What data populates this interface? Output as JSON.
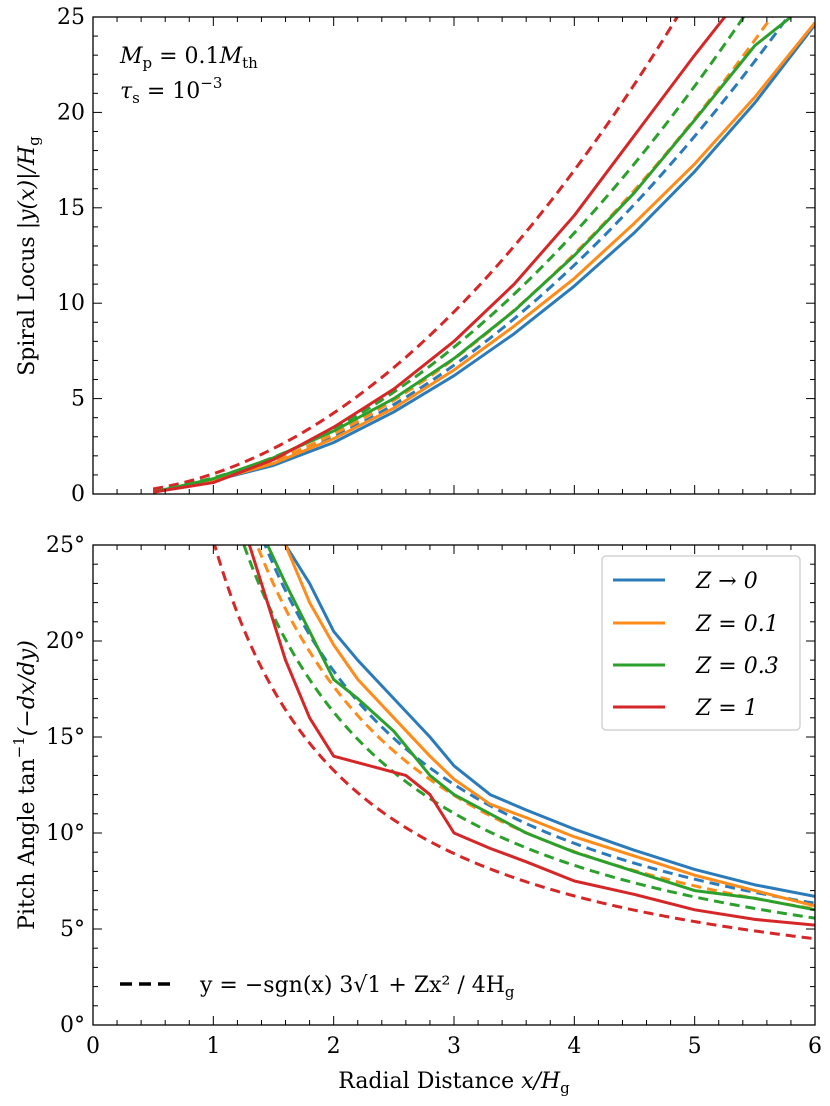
{
  "colors": {
    "blue": "#2b7bba",
    "orange": "#ff8c1a",
    "green": "#2ca02c",
    "red": "#d62728",
    "black": "#000000"
  },
  "chart_data": [
    {
      "type": "line",
      "panel": "top",
      "ylabel": "Spiral Locus |y(x)|/H_g",
      "xlim": [
        0,
        6
      ],
      "ylim": [
        0,
        25
      ],
      "x_ticks": [
        0,
        1,
        2,
        3,
        4,
        5,
        6
      ],
      "y_ticks": [
        0,
        5,
        10,
        15,
        20,
        25
      ],
      "y_tick_labels": [
        "0",
        "5",
        "10",
        "15",
        "20",
        "25"
      ],
      "annotations": [
        "M_p = 0.1 M_th",
        "τ_s = 10^-3"
      ],
      "dashed_model": {
        "formula": "y = -sgn(x) 3 sqrt(1+Z) x^2 / 4H_g",
        "x_start": 0.5
      },
      "series": [
        {
          "name": "Z → 0",
          "color_key": "blue",
          "x": [
            0.5,
            1.0,
            1.5,
            2.0,
            2.5,
            3.0,
            3.5,
            4.0,
            4.5,
            5.0,
            5.5,
            6.0
          ],
          "y": [
            0.1,
            0.7,
            1.5,
            2.7,
            4.3,
            6.2,
            8.4,
            10.9,
            13.7,
            16.9,
            20.5,
            24.6
          ]
        },
        {
          "name": "Z = 0.1",
          "color_key": "orange",
          "x": [
            0.5,
            1.0,
            1.5,
            2.0,
            2.5,
            3.0,
            3.5,
            4.0,
            4.5,
            5.0,
            5.5,
            6.0
          ],
          "y": [
            0.1,
            0.7,
            1.6,
            2.9,
            4.5,
            6.5,
            8.8,
            11.3,
            14.2,
            17.3,
            20.8,
            24.7
          ]
        },
        {
          "name": "Z = 0.3",
          "color_key": "green",
          "x": [
            0.5,
            1.0,
            1.5,
            2.0,
            2.5,
            3.0,
            3.5,
            4.0,
            4.5,
            5.0,
            5.5,
            5.8
          ],
          "y": [
            0.1,
            0.8,
            1.9,
            3.3,
            5.0,
            7.1,
            9.6,
            12.5,
            15.8,
            19.6,
            23.5,
            25.0
          ]
        },
        {
          "name": "Z = 1",
          "color_key": "red",
          "x": [
            0.5,
            1.0,
            1.5,
            2.0,
            2.5,
            3.0,
            3.5,
            4.0,
            4.5,
            5.0,
            5.25
          ],
          "y": [
            0.1,
            0.6,
            1.8,
            3.5,
            5.5,
            8.0,
            11.0,
            14.6,
            18.8,
            23.0,
            25.0
          ]
        }
      ]
    },
    {
      "type": "line",
      "panel": "bottom",
      "xlabel": "Radial Distance x/H_g",
      "ylabel": "Pitch Angle tan^-1(-dx/dy)",
      "xlim": [
        0,
        6
      ],
      "ylim": [
        0,
        25
      ],
      "x_ticks": [
        0,
        1,
        2,
        3,
        4,
        5,
        6
      ],
      "x_tick_labels": [
        "0",
        "1",
        "2",
        "3",
        "4",
        "5",
        "6"
      ],
      "y_ticks": [
        0,
        5,
        10,
        15,
        20,
        25
      ],
      "y_tick_labels": [
        "0°",
        "5°",
        "10°",
        "15°",
        "20°",
        "25°"
      ],
      "legend_position": "top-right",
      "series": [
        {
          "name": "Z → 0",
          "color_key": "blue",
          "x": [
            1.6,
            1.8,
            2.0,
            2.2,
            2.5,
            2.8,
            3.0,
            3.3,
            3.6,
            4.0,
            4.5,
            5.0,
            5.5,
            6.0
          ],
          "y": [
            25.0,
            23.0,
            20.5,
            19.0,
            17.0,
            15.0,
            13.5,
            12.0,
            11.2,
            10.2,
            9.1,
            8.1,
            7.3,
            6.7
          ]
        },
        {
          "name": "Z = 0.1",
          "color_key": "orange",
          "x": [
            1.6,
            1.8,
            2.0,
            2.2,
            2.5,
            2.8,
            3.0,
            3.3,
            3.6,
            4.0,
            4.5,
            5.0,
            5.5,
            6.0
          ],
          "y": [
            25.0,
            22.0,
            19.8,
            18.0,
            16.0,
            14.0,
            12.8,
            11.5,
            10.8,
            9.8,
            8.8,
            7.8,
            7.0,
            6.2
          ]
        },
        {
          "name": "Z = 0.3",
          "color_key": "green",
          "x": [
            1.45,
            1.6,
            1.8,
            2.0,
            2.2,
            2.5,
            2.8,
            3.0,
            3.3,
            3.6,
            4.0,
            4.5,
            5.0,
            5.5,
            6.0
          ],
          "y": [
            25.0,
            23.0,
            20.5,
            18.0,
            17.0,
            15.3,
            13.0,
            12.0,
            11.0,
            10.0,
            9.0,
            8.0,
            7.0,
            6.6,
            6.0
          ]
        },
        {
          "name": "Z = 1",
          "color_key": "red",
          "x": [
            1.3,
            1.45,
            1.6,
            1.8,
            2.0,
            2.3,
            2.6,
            2.8,
            3.0,
            3.3,
            3.6,
            4.0,
            4.5,
            5.0,
            5.5,
            6.0
          ],
          "y": [
            25.0,
            22.0,
            19.0,
            16.0,
            14.0,
            13.5,
            13.0,
            12.0,
            10.0,
            9.2,
            8.5,
            7.5,
            6.8,
            6.0,
            5.5,
            5.2
          ]
        }
      ]
    }
  ],
  "labels": {
    "top_ylabel_text": "Spiral Locus ",
    "top_ylabel_math": "|y(x)|/H",
    "bottom_ylabel_text": "Pitch Angle tan",
    "bottom_ylabel_math": "(−dx/dy)",
    "xlabel_text": "Radial Distance ",
    "xlabel_math": "x/H",
    "subscript_g": "g",
    "superscript_m1": "−1",
    "annot_mp_lhs": "M",
    "annot_mp_sub": "p",
    "annot_mp_rhs": " = 0.1",
    "annot_mth_sub": "th",
    "annot_tau_lhs": "τ",
    "annot_tau_sub": "s",
    "annot_tau_rhs": " = 10",
    "annot_tau_sup": "−3",
    "dashed_legend_text": "y = −sgn(x) 3√1 + Zx² / 4H",
    "legend_blue": "Z → 0",
    "legend_orange": "Z = 0.1",
    "legend_green": "Z = 0.3",
    "legend_red": "Z = 1"
  }
}
